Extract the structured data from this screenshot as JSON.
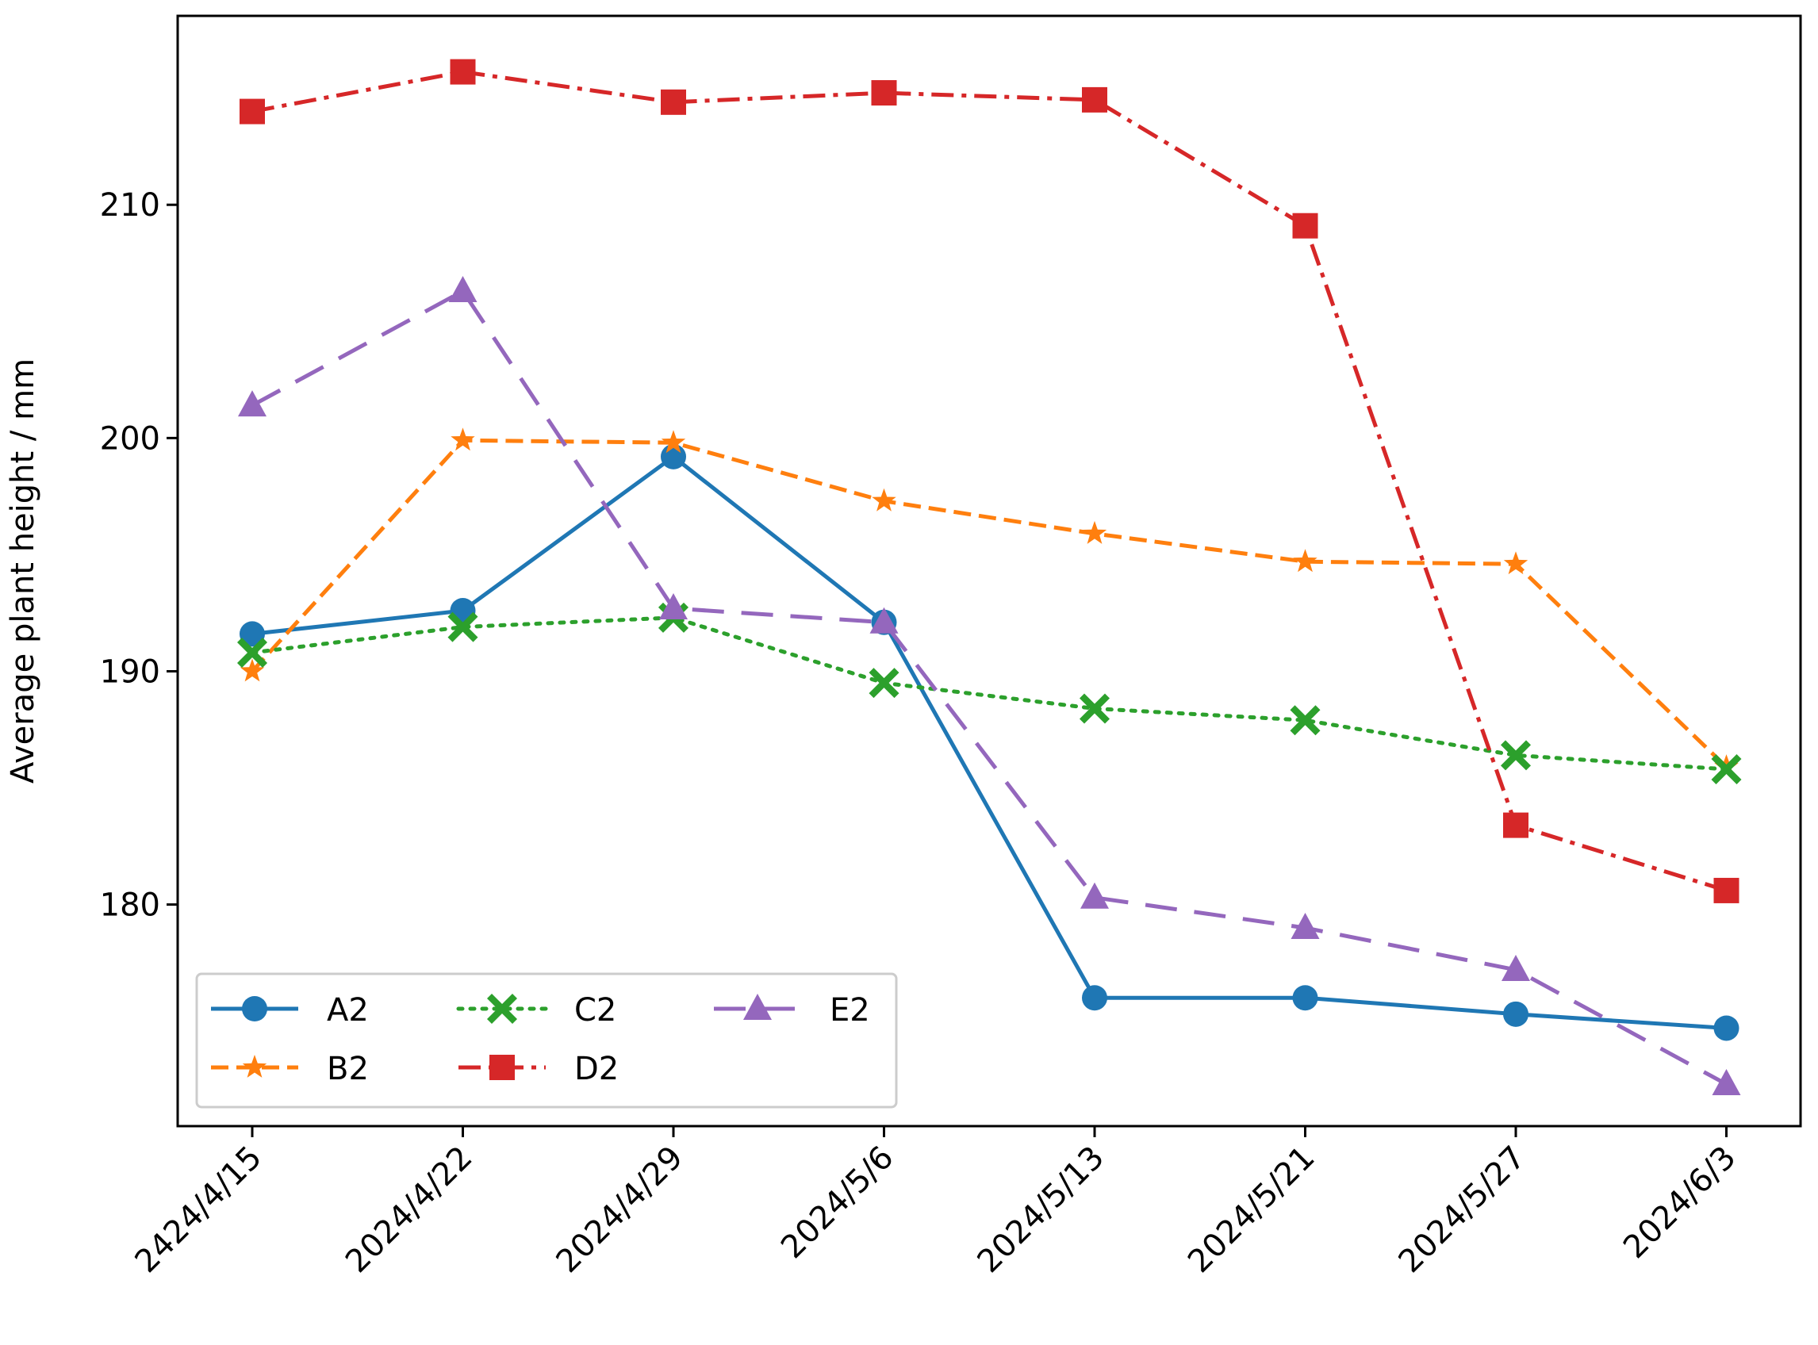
{
  "chart_data": {
    "type": "line",
    "title": "",
    "xlabel": "",
    "ylabel": "Average plant height / mm",
    "categories": [
      "2424/4/15",
      "2024/4/22",
      "2024/4/29",
      "2024/5/6",
      "2024/5/13",
      "2024/5/21",
      "2024/5/27",
      "2024/6/3"
    ],
    "ylim": [
      170.5,
      218.1
    ],
    "yticks": [
      180,
      190,
      200,
      210
    ],
    "ytick_labels": [
      "180",
      "190",
      "200",
      "210"
    ],
    "grid": false,
    "legend_position": "lower-left",
    "series": [
      {
        "name": "A2",
        "color": "#1f77b4",
        "marker": "circle",
        "dash": "solid",
        "values": [
          191.6,
          192.6,
          199.2,
          192.1,
          176.0,
          176.0,
          175.3,
          174.7
        ]
      },
      {
        "name": "B2",
        "color": "#ff7f0e",
        "marker": "star",
        "dash": "dashed",
        "values": [
          190.0,
          199.9,
          199.8,
          197.3,
          195.9,
          194.7,
          194.6,
          185.9
        ]
      },
      {
        "name": "C2",
        "color": "#2ca02c",
        "marker": "x",
        "dash": "dotted",
        "values": [
          190.8,
          191.9,
          192.3,
          189.5,
          188.4,
          187.9,
          186.4,
          185.8
        ]
      },
      {
        "name": "D2",
        "color": "#d62728",
        "marker": "square",
        "dash": "dashdot",
        "values": [
          214.0,
          215.7,
          214.4,
          214.8,
          214.5,
          209.1,
          183.4,
          180.6
        ]
      },
      {
        "name": "E2",
        "color": "#9467bd",
        "marker": "triangle",
        "dash": "longdash",
        "values": [
          201.4,
          206.3,
          192.7,
          192.1,
          180.3,
          179.0,
          177.2,
          172.3
        ]
      }
    ]
  }
}
